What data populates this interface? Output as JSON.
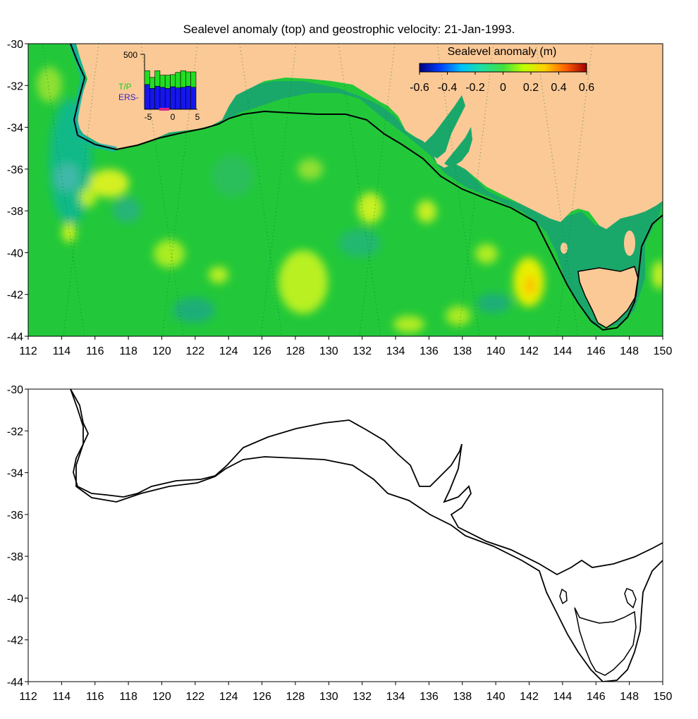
{
  "title": "Sealevel anomaly (top) and geostrophic velocity: 21-Jan-1993.",
  "colors": {
    "land": "#fbc996",
    "ocean_base": "#22c83a",
    "shelf": "#1aa86a",
    "coast_teal": "#14b4a8",
    "contour": "#000000",
    "tp_bar": "#22dd22",
    "ers_bar": "#1515ee",
    "tp_label": "#22cc22",
    "ers_label": "#3322cc",
    "marker": "#dd2288"
  },
  "top_map": {
    "x_ticks": [
      "112",
      "114",
      "116",
      "118",
      "120",
      "122",
      "124",
      "126",
      "128",
      "130",
      "132",
      "134",
      "136",
      "138",
      "140",
      "142",
      "144",
      "146",
      "148",
      "150"
    ],
    "y_ticks": [
      "-30",
      "-32",
      "-34",
      "-36",
      "-38",
      "-40",
      "-42",
      "-44"
    ],
    "colorbar": {
      "title": "Sealevel anomaly (m)",
      "ticks": [
        "-0.6",
        "-0.4",
        "-0.2",
        "0",
        "0.2",
        "0.4",
        "0.6"
      ],
      "range": [
        -0.6,
        0.6
      ],
      "colors": [
        "#000080",
        "#0040ff",
        "#00c0ff",
        "#20e0a0",
        "#40e040",
        "#c0ff00",
        "#ffd000",
        "#ff6000",
        "#a00000"
      ]
    },
    "inset": {
      "y_tick": "500",
      "x_ticks": [
        "-5",
        "0",
        "5"
      ],
      "label_tp": "T/P",
      "label_ers": "ERS-",
      "ers_values": [
        0.45,
        0.38,
        0.42,
        0.4,
        0.38,
        0.41,
        0.39,
        0.4,
        0.42,
        0.4
      ],
      "tp_values": [
        0.25,
        0.2,
        0.28,
        0.22,
        0.24,
        0.22,
        0.28,
        0.3,
        0.26,
        0.28
      ]
    }
  },
  "bottom_map": {
    "x_ticks": [
      "112",
      "114",
      "116",
      "118",
      "120",
      "122",
      "124",
      "126",
      "128",
      "130",
      "132",
      "134",
      "136",
      "138",
      "140",
      "142",
      "144",
      "146",
      "148",
      "150"
    ],
    "y_ticks": [
      "-30",
      "-32",
      "-34",
      "-36",
      "-38",
      "-40",
      "-42",
      "-44"
    ]
  }
}
